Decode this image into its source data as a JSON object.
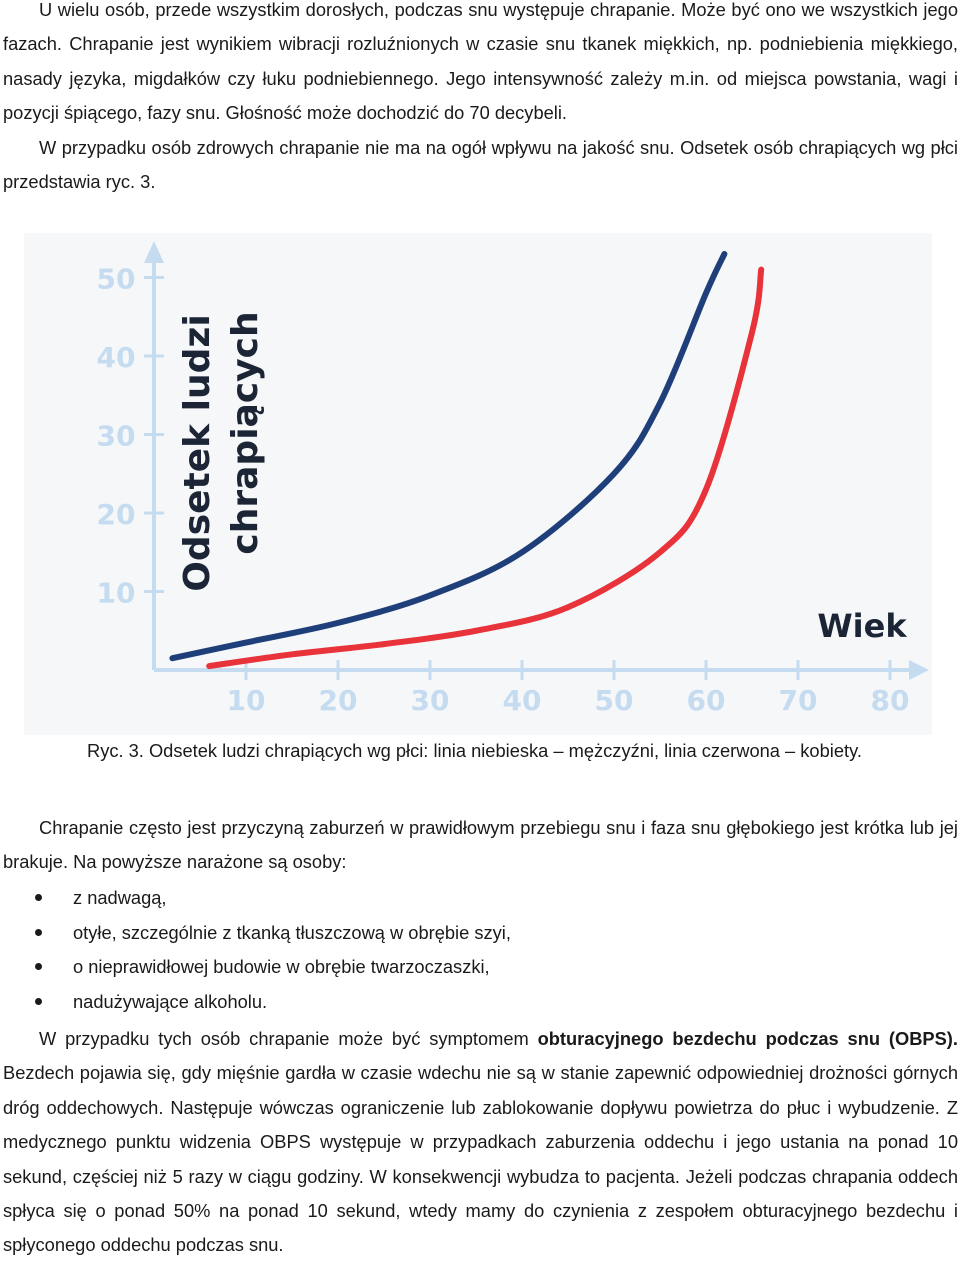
{
  "paragraphs": {
    "p1": "U wielu osób, przede wszystkim dorosłych, podczas snu występuje chrapanie. Może być ono we wszystkich jego fazach. Chrapanie jest wynikiem wibracji rozluźnionych w czasie snu tkanek miękkich, np. podniebienia miękkiego, nasady języka, migdałków czy łuku podniebiennego. Jego intensywność zależy m.in. od miejsca powstania, wagi i pozycji śpiącego, fazy snu. Głośność może dochodzić do 70 decybeli.",
    "p1b": "W przypadku osób zdrowych chrapanie nie ma na ogół wpływu na jakość snu. Odsetek osób chrapiących wg płci przedstawia ryc. 3.",
    "p2": "Chrapanie często jest przyczyną zaburzeń w prawidłowym przebiegu snu i faza snu głębokiego jest krótka lub jej brakuje. Na powyższe narażone są osoby:",
    "p3_before": "W przypadku tych osób chrapanie może być symptomem ",
    "p3_bold": "obturacyjnego bezdechu podczas snu (OBPS).",
    "p3_after": " Bezdech pojawia się, gdy mięśnie gardła w czasie wdechu nie są w stanie zapewnić odpowiedniej drożności górnych dróg oddechowych. Następuje wówczas ograniczenie lub zablokowanie dopływu powietrza do płuc i wybudzenie. Z medycznego punktu widzenia OBPS występuje w przypadkach zaburzenia oddechu i jego ustania na ponad 10 sekund, częściej niż 5 razy w ciągu godziny. W konsekwencji wybudza to pacjenta. Jeżeli podczas chrapania oddech spłyca się o ponad 50% na ponad 10 sekund, wtedy mamy do czynienia z zespołem obturacyjnego bezdechu i spłyconego oddechu podczas snu."
  },
  "bullets": [
    "z nadwagą,",
    "otyłe, szczególnie z tkanką tłuszczową w obrębie szyi,",
    "o nieprawidłowej budowie w obrębie twarzoczaszki,",
    "nadużywające alkoholu."
  ],
  "caption": "Ryc. 3. Odsetek ludzi chrapiących wg płci: linia niebieska – mężczyźni, linia czerwona – kobiety.",
  "chart_data": {
    "type": "line",
    "ylabel_line1": "Odsetek ludzi",
    "ylabel_line2": "chrapiących",
    "xlabel": "Wiek",
    "x_ticks": [
      10,
      20,
      30,
      40,
      50,
      60,
      70,
      80
    ],
    "y_ticks": [
      10,
      20,
      30,
      40,
      50
    ],
    "xlim": [
      0,
      80
    ],
    "ylim": [
      0,
      50
    ],
    "grid": false,
    "series": [
      {
        "color": "#1f3f7a",
        "x": [
          2,
          10,
          20,
          30,
          40,
          50,
          55,
          60,
          62
        ],
        "y": [
          1.5,
          3.5,
          6,
          9.5,
          15,
          25,
          34,
          48,
          53
        ]
      },
      {
        "color": "#e8333b",
        "x": [
          6,
          15,
          25,
          35,
          45,
          55,
          60,
          65,
          66
        ],
        "y": [
          0.5,
          2,
          3.3,
          5,
          8,
          15,
          23,
          43,
          51
        ]
      }
    ],
    "colors": {
      "axis": "#c5dcf0",
      "label": "#1b2535"
    }
  }
}
